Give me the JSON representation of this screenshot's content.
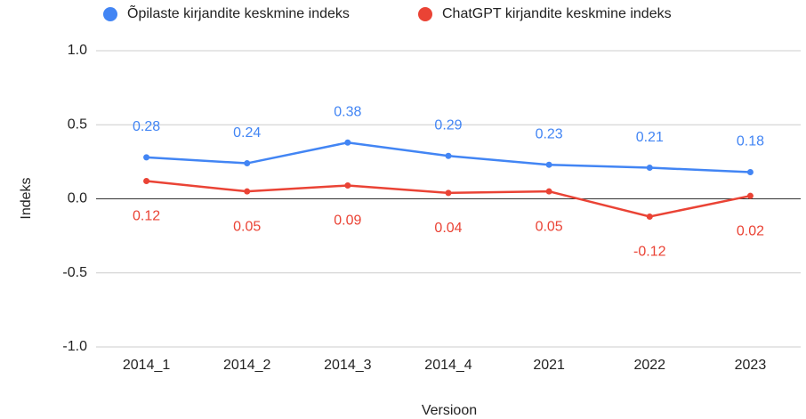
{
  "chart_data": {
    "type": "line",
    "categories": [
      "2014_1",
      "2014_2",
      "2014_3",
      "2014_4",
      "2021",
      "2022",
      "2023"
    ],
    "series": [
      {
        "name": "Õpilaste kirjandite keskmine indeks",
        "color": "#4285f4",
        "values": [
          0.28,
          0.24,
          0.38,
          0.29,
          0.23,
          0.21,
          0.18
        ]
      },
      {
        "name": "ChatGPT kirjandite keskmine indeks",
        "color": "#ea4335",
        "values": [
          0.12,
          0.05,
          0.09,
          0.04,
          0.05,
          -0.12,
          0.02
        ]
      }
    ],
    "xlabel": "Versioon",
    "ylabel": "Indeks",
    "ylim": [
      -1,
      1
    ],
    "yticks": [
      {
        "value": 1,
        "label": "1.0"
      },
      0.5,
      {
        "value": 0,
        "label": "0.0"
      },
      -0.5,
      {
        "value": -1,
        "label": "-1.0"
      }
    ],
    "grid": true
  }
}
